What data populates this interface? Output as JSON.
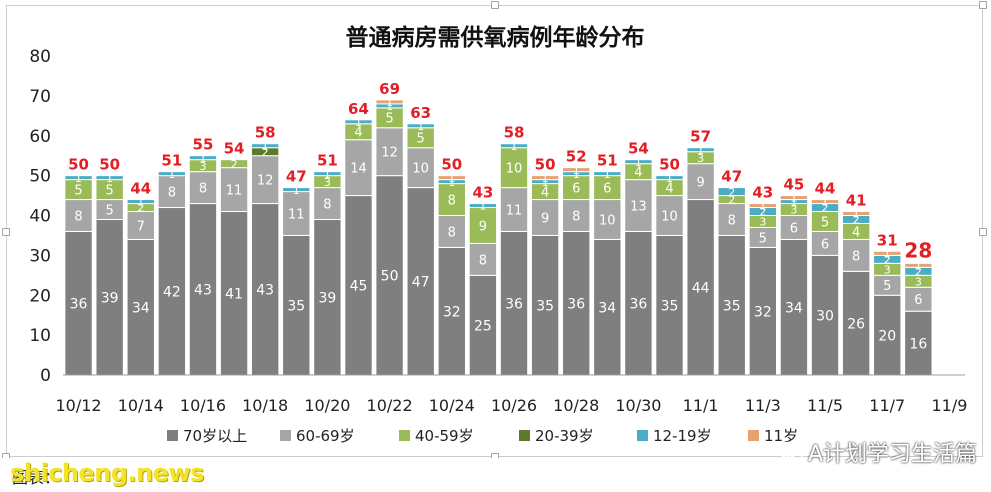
{
  "chart_data": {
    "type": "bar",
    "stacked": true,
    "title": "普通病房需供氧病例年龄分布",
    "categories": [
      "10/12",
      "10/13",
      "10/14",
      "10/15",
      "10/16",
      "10/17",
      "10/18",
      "10/19",
      "10/20",
      "10/21",
      "10/22",
      "10/23",
      "10/24",
      "10/25",
      "10/26",
      "10/27",
      "10/28",
      "10/29",
      "10/30",
      "10/31",
      "11/1",
      "11/2",
      "11/3",
      "11/4",
      "11/5",
      "11/6",
      "11/7",
      "11/8"
    ],
    "x_tick_labels": [
      "10/12",
      "10/14",
      "10/16",
      "10/18",
      "10/20",
      "10/22",
      "10/24",
      "10/26",
      "10/28",
      "10/30",
      "11/1",
      "11/3",
      "11/5",
      "11/7",
      "11/9"
    ],
    "ylim": [
      0,
      80
    ],
    "yticks": [
      0,
      10,
      20,
      30,
      40,
      50,
      60,
      70,
      80
    ],
    "grid": false,
    "legend_position": "bottom",
    "series": [
      {
        "name": "70岁以上",
        "color": "#7f7f7f",
        "values": [
          36,
          39,
          34,
          42,
          43,
          41,
          43,
          35,
          39,
          45,
          50,
          47,
          32,
          25,
          36,
          35,
          36,
          34,
          36,
          35,
          44,
          35,
          32,
          34,
          30,
          26,
          20,
          16
        ]
      },
      {
        "name": "60-69岁",
        "color": "#a6a6a6",
        "values": [
          8,
          5,
          7,
          8,
          8,
          11,
          12,
          11,
          8,
          14,
          12,
          10,
          8,
          8,
          11,
          9,
          8,
          10,
          13,
          10,
          9,
          8,
          5,
          6,
          6,
          8,
          5,
          6
        ]
      },
      {
        "name": "40-59岁",
        "color": "#9bbb59",
        "values": [
          5,
          5,
          2,
          0,
          3,
          2,
          0,
          0,
          3,
          4,
          5,
          5,
          8,
          9,
          10,
          4,
          6,
          6,
          4,
          4,
          3,
          2,
          3,
          3,
          5,
          4,
          3,
          3
        ]
      },
      {
        "name": "20-39岁",
        "color": "#5b7a2a",
        "values": [
          0,
          0,
          0,
          0,
          0,
          0,
          2,
          0,
          0,
          0,
          0,
          0,
          0,
          0,
          0,
          0,
          0,
          0,
          0,
          0,
          0,
          0,
          0,
          0,
          0,
          0,
          0,
          0
        ]
      },
      {
        "name": "12-19岁",
        "color": "#4bacc6",
        "values": [
          1,
          1,
          1,
          1,
          1,
          0,
          1,
          1,
          1,
          1,
          1,
          1,
          1,
          1,
          1,
          1,
          1,
          1,
          1,
          1,
          1,
          2,
          2,
          1,
          2,
          2,
          2,
          2
        ]
      },
      {
        "name": "11岁",
        "color": "#e8a170",
        "values": [
          0,
          0,
          0,
          0,
          0,
          0,
          0,
          0,
          0,
          0,
          1,
          0,
          1,
          0,
          0,
          1,
          1,
          0,
          0,
          0,
          0,
          0,
          1,
          1,
          1,
          1,
          1,
          1
        ]
      }
    ],
    "totals": [
      "50",
      "50",
      "44",
      "51",
      "55",
      "54",
      "58",
      "47",
      "51",
      "64",
      "69",
      "63",
      "50",
      "43",
      "58",
      "50",
      "52",
      "51",
      "54",
      "50",
      "57",
      "47",
      "43",
      "45",
      "44",
      "41",
      "31",
      "28"
    ],
    "label_colors": {
      "total": "#e31e24",
      "inside": "#ffffff"
    }
  },
  "source_label": "图表：",
  "watermark_left": "shicheng.news",
  "watermark_right": "A计划学习生活篇",
  "icons": {
    "watermark": "wechat-icon"
  }
}
